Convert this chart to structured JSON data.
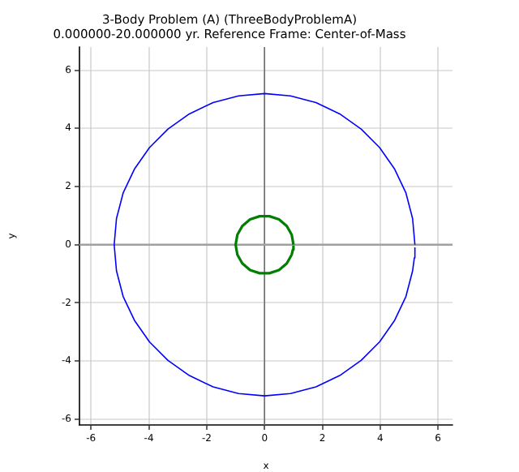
{
  "chart_data": {
    "type": "line",
    "title": "3-Body Problem (A) (ThreeBodyProblemA)",
    "subtitle": "0.000000-20.000000 yr. Reference Frame: Center-of-Mass",
    "xlabel": "x",
    "ylabel": "y",
    "xlim": [
      -6.4,
      6.5
    ],
    "ylim": [
      -6.2,
      6.8
    ],
    "xticks": [
      -6,
      -4,
      -2,
      0,
      2,
      4,
      6
    ],
    "yticks": [
      -6,
      -4,
      -2,
      0,
      2,
      4,
      6
    ],
    "grid": true,
    "legend": false,
    "marker": "none",
    "line_style": "solid",
    "ref_lines": [
      {
        "axis": "x",
        "value": 0,
        "color": "#707070"
      },
      {
        "axis": "y",
        "value": 0,
        "color": "#a0a0a0"
      }
    ],
    "series": [
      {
        "color": "#0000ff",
        "x": [
          5.2,
          5.12,
          4.89,
          4.5,
          3.98,
          3.34,
          2.6,
          1.78,
          0.9,
          0,
          -0.9,
          -1.78,
          -2.6,
          -3.34,
          -3.98,
          -4.5,
          -4.89,
          -5.12,
          -5.2,
          -5.12,
          -4.89,
          -4.5,
          -3.98,
          -3.34,
          -2.6,
          -1.78,
          -0.9,
          0,
          0.9,
          1.78,
          2.6,
          3.34,
          3.98,
          4.5,
          4.89,
          5.12,
          5.18,
          5.2
        ],
        "values": [
          0,
          0.9,
          1.78,
          2.6,
          3.34,
          3.98,
          4.5,
          4.89,
          5.12,
          5.2,
          5.12,
          4.89,
          4.5,
          3.98,
          3.34,
          2.6,
          1.78,
          0.9,
          0,
          -0.9,
          -1.78,
          -2.6,
          -3.34,
          -3.98,
          -4.5,
          -4.89,
          -5.12,
          -5.2,
          -5.12,
          -4.89,
          -4.5,
          -3.98,
          -3.34,
          -2.6,
          -1.78,
          -0.9,
          -0.45,
          -0.09
        ]
      },
      {
        "color": "#007f00",
        "x": [
          1,
          0.94,
          0.77,
          0.5,
          0.17,
          -0.17,
          -0.5,
          -0.77,
          -0.94,
          -1,
          -0.94,
          -0.77,
          -0.5,
          -0.17,
          0.17,
          0.5,
          0.77,
          0.94,
          0.98,
          1
        ],
        "values": [
          0,
          0.34,
          0.64,
          0.87,
          0.98,
          0.98,
          0.87,
          0.64,
          0.34,
          0,
          -0.34,
          -0.64,
          -0.87,
          -0.98,
          -0.98,
          -0.87,
          -0.64,
          -0.34,
          -0.17,
          -0.03
        ]
      }
    ]
  }
}
